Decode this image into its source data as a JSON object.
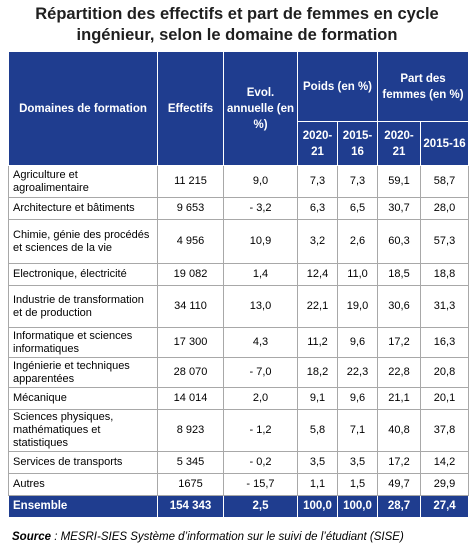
{
  "title": {
    "line1": "Répartition des effectifs et part de femmes en cycle",
    "line2": "ingénieur, selon le domaine de formation"
  },
  "headers": {
    "domain": "Domaines de formation",
    "effectifs": "Effectifs",
    "evol": "Evol. annuelle (en %)",
    "poids": "Poids (en %)",
    "part": "Part des femmes (en %)",
    "y1": "2020-21",
    "y2": "2015-16",
    "y3": "2020-21",
    "y4": "2015-16"
  },
  "rows": [
    {
      "name": "Agriculture et agroalimentaire",
      "effectifs": "11 215",
      "evol": "9,0",
      "poids2021": "7,3",
      "poids1516": "7,3",
      "femmes2021": "59,1",
      "femmes1516": "58,7"
    },
    {
      "name": "Architecture et bâtiments",
      "effectifs": "9 653",
      "evol": "- 3,2",
      "poids2021": "6,3",
      "poids1516": "6,5",
      "femmes2021": "30,7",
      "femmes1516": "28,0"
    },
    {
      "name": "Chimie, génie des procédés et sciences de la vie",
      "effectifs": "4 956",
      "evol": "10,9",
      "poids2021": "3,2",
      "poids1516": "2,6",
      "femmes2021": "60,3",
      "femmes1516": "57,3"
    },
    {
      "name": "Electronique, électricité",
      "effectifs": "19 082",
      "evol": "1,4",
      "poids2021": "12,4",
      "poids1516": "11,0",
      "femmes2021": "18,5",
      "femmes1516": "18,8"
    },
    {
      "name": "Industrie de transformation et de production",
      "effectifs": "34 110",
      "evol": "13,0",
      "poids2021": "22,1",
      "poids1516": "19,0",
      "femmes2021": "30,6",
      "femmes1516": "31,3"
    },
    {
      "name": "Informatique et sciences informatiques",
      "effectifs": "17 300",
      "evol": "4,3",
      "poids2021": "11,2",
      "poids1516": "9,6",
      "femmes2021": "17,2",
      "femmes1516": "16,3"
    },
    {
      "name": "Ingénierie et techniques apparentées",
      "effectifs": "28 070",
      "evol": "- 7,0",
      "poids2021": "18,2",
      "poids1516": "22,3",
      "femmes2021": "22,8",
      "femmes1516": "20,8"
    },
    {
      "name": "Mécanique",
      "effectifs": "14 014",
      "evol": "2,0",
      "poids2021": "9,1",
      "poids1516": "9,6",
      "femmes2021": "21,1",
      "femmes1516": "20,1"
    },
    {
      "name": "Sciences physiques, mathématiques et statistiques",
      "effectifs": "8 923",
      "evol": "- 1,2",
      "poids2021": "5,8",
      "poids1516": "7,1",
      "femmes2021": "40,8",
      "femmes1516": "37,8"
    },
    {
      "name": "Services de transports",
      "effectifs": "5 345",
      "evol": "- 0,2",
      "poids2021": "3,5",
      "poids1516": "3,5",
      "femmes2021": "17,2",
      "femmes1516": "14,2"
    },
    {
      "name": "Autres",
      "effectifs": "1675",
      "evol": "- 15,7",
      "poids2021": "1,1",
      "poids1516": "1,5",
      "femmes2021": "49,7",
      "femmes1516": "29,9"
    }
  ],
  "total": {
    "name": "Ensemble",
    "effectifs": "154 343",
    "evol": "2,5",
    "poids2021": "100,0",
    "poids1516": "100,0",
    "femmes2021": "28,7",
    "femmes1516": "27,4"
  },
  "source": {
    "label": "Source",
    "text": " : MESRI-SIES Système d’information sur le suivi de l’étudiant (SISE)"
  },
  "colors": {
    "header_bg": "#1f3d8f",
    "header_text": "#ffffff"
  }
}
